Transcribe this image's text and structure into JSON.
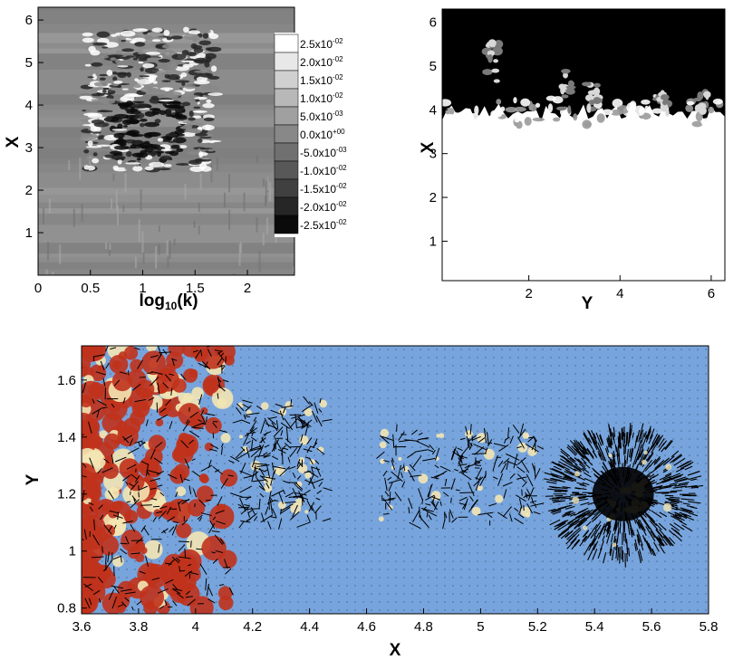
{
  "figure": {
    "panels": 3
  },
  "chart_data": [
    {
      "type": "heatmap",
      "panel": "spectrum",
      "xlabel": "log10(k)",
      "ylabel": "X",
      "xlim": [
        0,
        2.45
      ],
      "ylim": [
        0,
        6.3
      ],
      "xticks": [
        {
          "v": 0,
          "t": "0"
        },
        {
          "v": 0.5,
          "t": "0.5"
        },
        {
          "v": 1,
          "t": "1"
        },
        {
          "v": 1.5,
          "t": "1.5"
        },
        {
          "v": 2,
          "t": "2"
        }
      ],
      "yticks": [
        {
          "v": 1,
          "t": "1"
        },
        {
          "v": 2,
          "t": "2"
        },
        {
          "v": 3,
          "t": "3"
        },
        {
          "v": 4,
          "t": "4"
        },
        {
          "v": 5,
          "t": "5"
        },
        {
          "v": 6,
          "t": "6"
        }
      ],
      "colormap": "grayscale",
      "legend_position": "right",
      "legend_levels": [
        "2.5x10-02",
        "2.0x10-02",
        "1.5x10-02",
        "1.0x10-02",
        "5.0x10-03",
        "0.0x10+00",
        "-5.0x10-03",
        "-1.0x10-02",
        "-1.5x10-02",
        "-2.0x10-02",
        "-2.5x10-02"
      ],
      "legend_colors": [
        "#ffffff",
        "#e8e8e8",
        "#d0d0d0",
        "#b8b8b8",
        "#a0a0a0",
        "#888888",
        "#707070",
        "#585858",
        "#404040",
        "#262626",
        "#0a0a0a"
      ],
      "active_region": {
        "x": [
          0.45,
          1.7
        ],
        "y": [
          2.45,
          5.8
        ]
      }
    },
    {
      "type": "heatmap",
      "panel": "interface",
      "xlabel": "Y",
      "ylabel": "X",
      "xlim": [
        0.1,
        6.3
      ],
      "ylim": [
        0.1,
        6.3
      ],
      "xticks": [
        {
          "v": 2,
          "t": "2"
        },
        {
          "v": 4,
          "t": "4"
        },
        {
          "v": 6,
          "t": "6"
        }
      ],
      "yticks": [
        {
          "v": 1,
          "t": "1"
        },
        {
          "v": 2,
          "t": "2"
        },
        {
          "v": 3,
          "t": "3"
        },
        {
          "v": 4,
          "t": "4"
        },
        {
          "v": 5,
          "t": "5"
        },
        {
          "v": 6,
          "t": "6"
        }
      ],
      "upper_color": "#000000",
      "lower_color": "#ffffff",
      "interface_level": 3.6
    },
    {
      "type": "scatter",
      "panel": "velocity-field",
      "xlabel": "X",
      "ylabel": "Y",
      "xlim": [
        3.6,
        5.8
      ],
      "ylim": [
        0.78,
        1.72
      ],
      "xticks": [
        {
          "v": 3.6,
          "t": "3.6"
        },
        {
          "v": 3.8,
          "t": "3.8"
        },
        {
          "v": 4,
          "t": "4"
        },
        {
          "v": 4.2,
          "t": "4.2"
        },
        {
          "v": 4.4,
          "t": "4.4"
        },
        {
          "v": 4.6,
          "t": "4.6"
        },
        {
          "v": 4.8,
          "t": "4.8"
        },
        {
          "v": 5,
          "t": "5"
        },
        {
          "v": 5.2,
          "t": "5.2"
        },
        {
          "v": 5.4,
          "t": "5.4"
        },
        {
          "v": 5.6,
          "t": "5.6"
        },
        {
          "v": 5.8,
          "t": "5.8"
        }
      ],
      "yticks": [
        {
          "v": 0.8,
          "t": "0.8"
        },
        {
          "v": 1,
          "t": "1"
        },
        {
          "v": 1.2,
          "t": "1.2"
        },
        {
          "v": 1.4,
          "t": "1.4"
        },
        {
          "v": 1.6,
          "t": "1.6"
        }
      ],
      "background_color": "#77a4dc",
      "fluid_color": "#c0321c",
      "highlight_color": "#f3e6b4",
      "vector_color": "#000000",
      "regions": [
        {
          "name": "dense-fluid",
          "x": [
            3.6,
            4.12
          ],
          "y": [
            0.8,
            1.72
          ]
        },
        {
          "name": "mid-eddies",
          "x": [
            4.15,
            4.45
          ],
          "y": [
            1.1,
            1.52
          ]
        },
        {
          "name": "central-eddies",
          "x": [
            4.65,
            5.2
          ],
          "y": [
            1.1,
            1.42
          ]
        },
        {
          "name": "vortex",
          "x": [
            5.2,
            5.68
          ],
          "y": [
            0.95,
            1.45
          ]
        }
      ]
    }
  ]
}
